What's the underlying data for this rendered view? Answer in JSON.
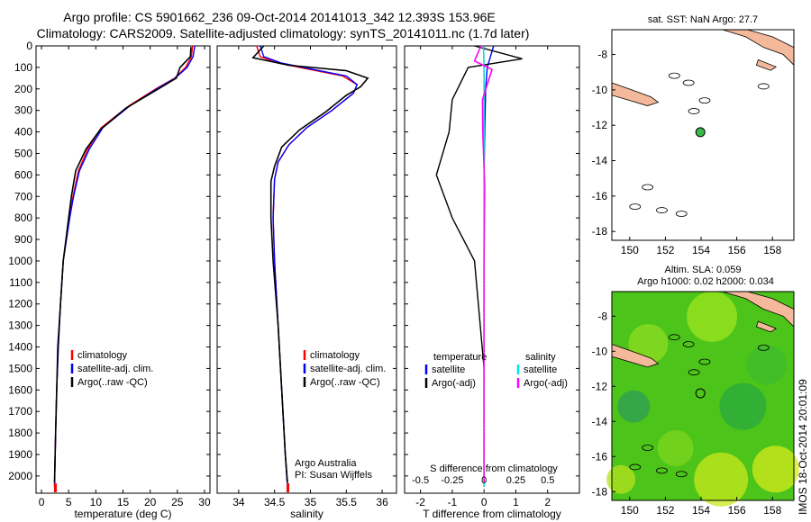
{
  "header": {
    "line1": "Argo profile: CS 5901662_236 09-Oct-2014 20141013_342 12.393S 153.96E",
    "line2": "Climatology: CARS2009. Satellite-adjusted climatology: synTS_20141011.nc (1.7d later)"
  },
  "footer_stamp": "IMOS 18-Oct-2014 20:01:09",
  "colors": {
    "climatology": "#ff0000",
    "satellite": "#0000ff",
    "argo": "#000000",
    "satellite_salinity": "#00e5e5",
    "argo_salinity": "#ff00ff",
    "land": "#f4b99a",
    "marker": "#3cb94a"
  },
  "chart_data": [
    {
      "id": "temperature-profile",
      "type": "line",
      "xlabel": "temperature (deg C)",
      "ylabel": "",
      "xlim": [
        -1,
        31
      ],
      "ylim": [
        2080,
        0
      ],
      "xticks": [
        "0",
        "5",
        "10",
        "15",
        "20",
        "25",
        "30"
      ],
      "yticks": [
        "0",
        "100",
        "200",
        "300",
        "400",
        "500",
        "600",
        "700",
        "800",
        "900",
        "1000",
        "1100",
        "1200",
        "1300",
        "1400",
        "1500",
        "1600",
        "1700",
        "1800",
        "1900",
        "2000"
      ],
      "legend": [
        "climatology",
        "satellite-adj. clim.",
        "Argo(..raw -QC)"
      ],
      "series": [
        {
          "name": "climatology",
          "x": [
            27.8,
            27.6,
            26.5,
            24.5,
            21,
            16,
            11,
            8.5,
            6.8,
            5.8,
            5.1,
            4.6,
            4.0,
            3.5,
            3.1,
            2.8,
            2.6,
            2.4
          ],
          "y": [
            0,
            50,
            100,
            150,
            200,
            280,
            380,
            480,
            580,
            700,
            800,
            900,
            1000,
            1200,
            1400,
            1600,
            1800,
            2050
          ]
        },
        {
          "name": "satellite-adj. clim.",
          "x": [
            28.2,
            27.9,
            26.8,
            24.6,
            21.2,
            16.2,
            11.3,
            8.8,
            7.0,
            5.9,
            5.2,
            4.6,
            4.0,
            3.5,
            3.1,
            2.8,
            2.6,
            2.4
          ],
          "y": [
            0,
            50,
            100,
            150,
            200,
            280,
            380,
            480,
            580,
            700,
            800,
            900,
            1000,
            1200,
            1400,
            1600,
            1800,
            2050
          ]
        },
        {
          "name": "Argo(..raw -QC)",
          "x": [
            27.5,
            27.4,
            25.5,
            24.8,
            21.5,
            15.5,
            10.8,
            8.2,
            6.3,
            5.5,
            5.0,
            4.5,
            4.0,
            3.5,
            3.0,
            2.8,
            2.6,
            2.4
          ],
          "y": [
            5,
            50,
            100,
            150,
            200,
            290,
            390,
            480,
            580,
            700,
            800,
            900,
            1000,
            1200,
            1400,
            1600,
            1800,
            2030
          ]
        }
      ]
    },
    {
      "id": "salinity-profile",
      "type": "line",
      "xlabel": "salinity",
      "xlim": [
        33.7,
        36.2
      ],
      "ylim": [
        2080,
        0
      ],
      "xticks": [
        "34",
        "34.5",
        "35",
        "35.5",
        "36"
      ],
      "legend": [
        "climatology",
        "satellite-adj. clim.",
        "Argo(..raw -QC)"
      ],
      "annotation": [
        "Argo Australia",
        "PI: Susan Wijffels"
      ],
      "series": [
        {
          "name": "climatology",
          "x": [
            34.25,
            34.3,
            34.55,
            35.0,
            35.45,
            35.65,
            35.6,
            35.3,
            34.95,
            34.7,
            34.55,
            34.5,
            34.48,
            34.5,
            34.55,
            34.6,
            34.65,
            34.68
          ],
          "y": [
            0,
            50,
            80,
            110,
            140,
            180,
            220,
            300,
            380,
            460,
            540,
            620,
            800,
            1000,
            1300,
            1600,
            1900,
            2050
          ]
        },
        {
          "name": "satellite-adj. clim.",
          "x": [
            34.3,
            34.35,
            34.6,
            35.05,
            35.5,
            35.65,
            35.6,
            35.3,
            34.95,
            34.7,
            34.55,
            34.5,
            34.48,
            34.5,
            34.55,
            34.6,
            34.65,
            34.68
          ],
          "y": [
            0,
            50,
            80,
            110,
            140,
            180,
            220,
            300,
            380,
            460,
            540,
            620,
            800,
            1000,
            1300,
            1600,
            1900,
            2050
          ]
        },
        {
          "name": "Argo(..raw -QC)",
          "x": [
            34.35,
            34.2,
            34.7,
            35.5,
            35.8,
            35.7,
            35.5,
            35.2,
            34.85,
            34.6,
            34.5,
            34.45,
            34.45,
            34.48,
            34.55,
            34.6,
            34.65,
            34.68
          ],
          "y": [
            0,
            55,
            90,
            115,
            150,
            190,
            230,
            310,
            390,
            470,
            560,
            630,
            800,
            1000,
            1300,
            1600,
            1900,
            2030
          ]
        }
      ]
    },
    {
      "id": "difference-profile",
      "type": "line",
      "xlabel": "T difference from climatology",
      "xlabel2": "S difference from climatology",
      "xlim": [
        -2.5,
        3.0
      ],
      "ylim": [
        2080,
        0
      ],
      "xticks": [
        "-2",
        "-1",
        "0",
        "1",
        "2"
      ],
      "xticks_s": [
        "-0.5",
        "-0.25",
        "0",
        "0.25",
        "0.5"
      ],
      "legend_headers": [
        "temperature",
        "salinity"
      ],
      "legend": [
        "satellite",
        "Argo(-adj)",
        "satellite",
        "Argo(-adj)"
      ],
      "series": [
        {
          "name": "temperature satellite",
          "x": [
            0.3,
            0.2,
            0.1,
            0.05,
            0.02,
            0.0,
            0.0,
            0.0,
            0.0,
            0.0
          ],
          "y": [
            0,
            50,
            100,
            200,
            400,
            600,
            900,
            1200,
            1600,
            2050
          ]
        },
        {
          "name": "temperature Argo(-adj)",
          "x": [
            -0.3,
            1.2,
            -0.5,
            -1.0,
            -1.1,
            -1.5,
            -1.0,
            -0.3,
            0.0,
            0.0
          ],
          "y": [
            0,
            60,
            100,
            250,
            400,
            600,
            800,
            1000,
            1500,
            2030
          ]
        },
        {
          "name": "salinity satellite",
          "x": [
            -0.02,
            0.0,
            0.0,
            0.0,
            0.0,
            0.0,
            0.0
          ],
          "y": [
            0,
            100,
            300,
            600,
            1000,
            1500,
            2050
          ]
        },
        {
          "name": "salinity Argo(-adj)",
          "x": [
            -0.1,
            -0.3,
            0.25,
            -0.05,
            -0.04,
            0.02,
            0.0,
            0.0
          ],
          "y": [
            0,
            70,
            110,
            250,
            400,
            650,
            1000,
            2030
          ]
        }
      ]
    },
    {
      "id": "sst-map",
      "type": "scatter",
      "title": "sat. SST: NaN Argo: 27.7",
      "xlim": [
        149,
        159.2
      ],
      "ylim": [
        -18.5,
        -6.6
      ],
      "xticks": [
        "150",
        "152",
        "154",
        "156",
        "158"
      ],
      "yticks": [
        "-8",
        "-10",
        "-12",
        "-14",
        "-16",
        "-18"
      ],
      "points": [
        {
          "x": 153.96,
          "y": -12.393
        }
      ]
    },
    {
      "id": "sla-map",
      "type": "heatmap",
      "title": "Altim. SLA: 0.059",
      "subtitle": "Argo h1000: 0.02 h2000: 0.034",
      "xlim": [
        149,
        159.2
      ],
      "ylim": [
        -18.5,
        -6.6
      ],
      "xticks": [
        "150",
        "152",
        "154",
        "156",
        "158"
      ],
      "yticks": [
        "-8",
        "-10",
        "-12",
        "-14",
        "-16",
        "-18"
      ],
      "points": [
        {
          "x": 153.96,
          "y": -12.393
        }
      ]
    }
  ]
}
